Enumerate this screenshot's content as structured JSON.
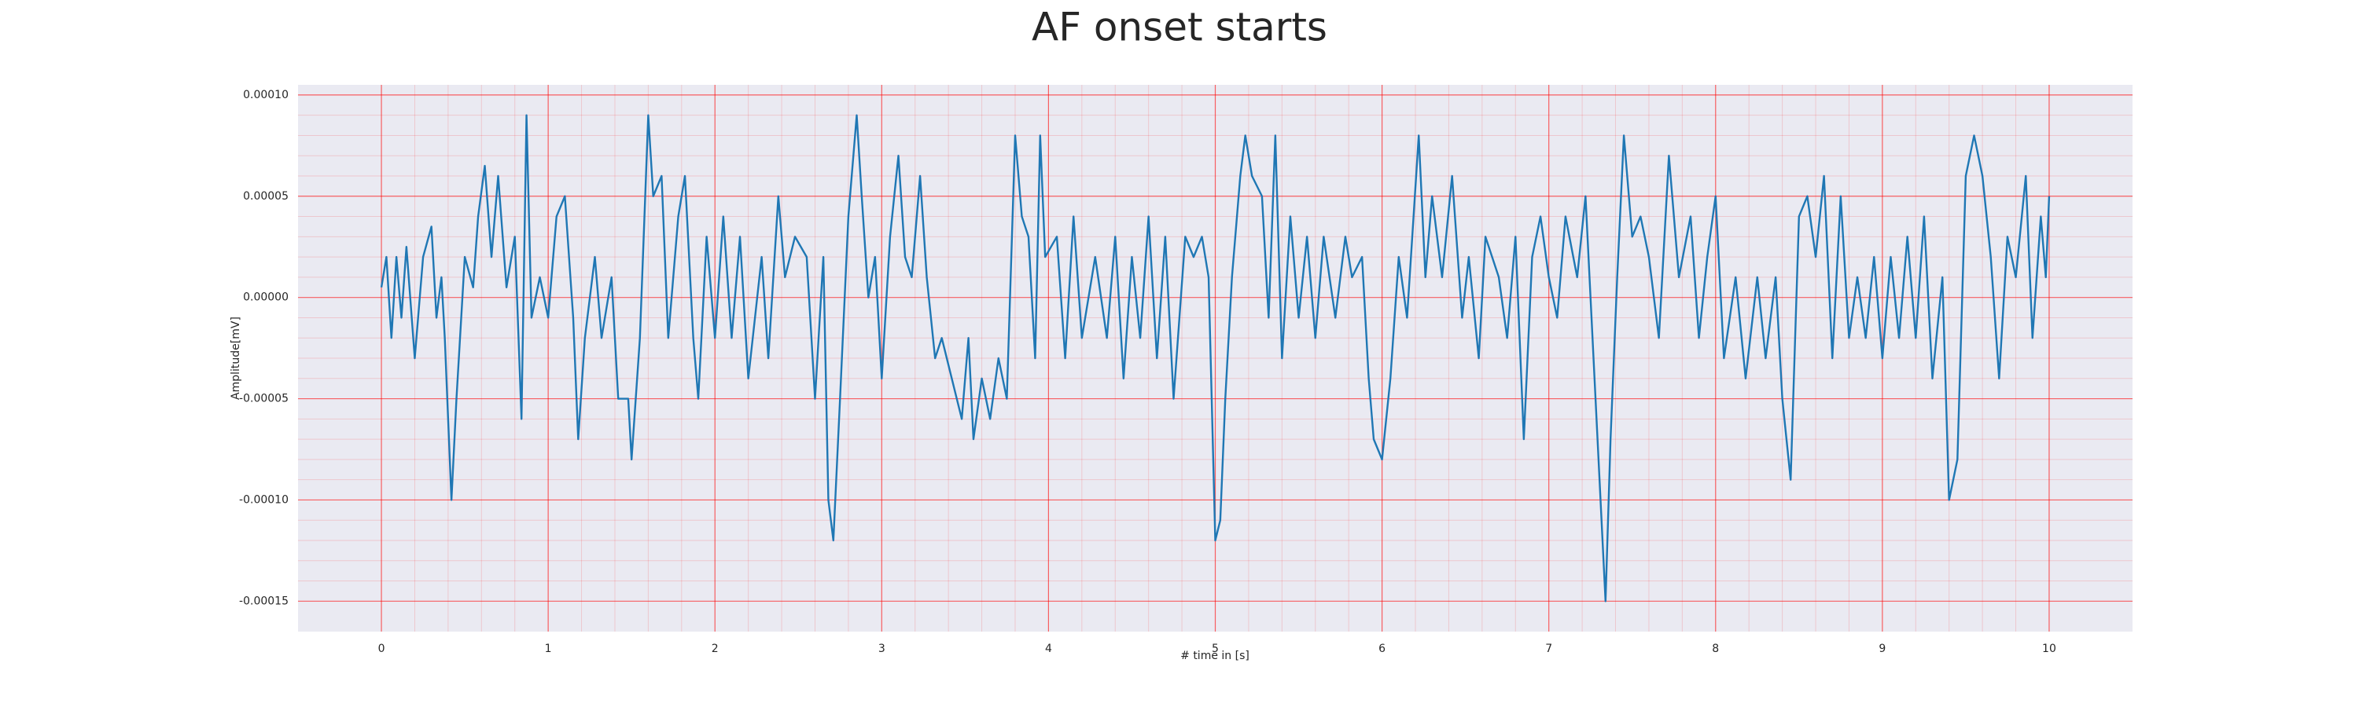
{
  "chart_data": {
    "type": "line",
    "title": "AF onset starts",
    "xlabel": "# time in [s]",
    "ylabel": "Amplitude[mV]",
    "color": "#1f77b4",
    "background": "#eaeaf2",
    "grid": true,
    "grid_color": "#ff0000",
    "minor_grid": true,
    "xlim": [
      -0.5,
      10.5
    ],
    "ylim": [
      -0.000165,
      0.000105
    ],
    "xticks": [
      0,
      1,
      2,
      3,
      4,
      5,
      6,
      7,
      8,
      9,
      10
    ],
    "yticks": [
      {
        "value": 0.0001,
        "label": "0.00010"
      },
      {
        "value": 5e-05,
        "label": "0.00005"
      },
      {
        "value": 0,
        "label": "0.00000"
      },
      {
        "value": -5e-05,
        "label": "-0.00005"
      },
      {
        "value": -0.0001,
        "label": "-0.00010"
      },
      {
        "value": -0.00015,
        "label": "-0.00015"
      }
    ],
    "x": [
      0,
      0.03,
      0.06,
      0.09,
      0.12,
      0.15,
      0.2,
      0.25,
      0.3,
      0.33,
      0.36,
      0.38,
      0.42,
      0.45,
      0.5,
      0.55,
      0.58,
      0.62,
      0.66,
      0.7,
      0.75,
      0.8,
      0.84,
      0.87,
      0.9,
      0.95,
      1.0,
      1.05,
      1.1,
      1.15,
      1.18,
      1.22,
      1.28,
      1.32,
      1.38,
      1.42,
      1.48,
      1.5,
      1.55,
      1.6,
      1.63,
      1.68,
      1.72,
      1.78,
      1.82,
      1.87,
      1.9,
      1.95,
      2.0,
      2.05,
      2.1,
      2.15,
      2.2,
      2.28,
      2.32,
      2.38,
      2.42,
      2.48,
      2.55,
      2.6,
      2.65,
      2.68,
      2.71,
      2.75,
      2.8,
      2.85,
      2.88,
      2.92,
      2.96,
      3.0,
      3.05,
      3.1,
      3.14,
      3.18,
      3.23,
      3.27,
      3.32,
      3.36,
      3.42,
      3.48,
      3.52,
      3.55,
      3.6,
      3.65,
      3.7,
      3.75,
      3.8,
      3.84,
      3.88,
      3.92,
      3.95,
      3.98,
      4.05,
      4.1,
      4.15,
      4.2,
      4.28,
      4.35,
      4.4,
      4.45,
      4.5,
      4.55,
      4.6,
      4.65,
      4.7,
      4.75,
      4.82,
      4.87,
      4.92,
      4.96,
      5.0,
      5.03,
      5.06,
      5.1,
      5.15,
      5.18,
      5.22,
      5.28,
      5.32,
      5.36,
      5.4,
      5.45,
      5.5,
      5.55,
      5.6,
      5.65,
      5.72,
      5.78,
      5.82,
      5.88,
      5.92,
      5.95,
      6.0,
      6.05,
      6.1,
      6.15,
      6.22,
      6.26,
      6.3,
      6.36,
      6.42,
      6.48,
      6.52,
      6.58,
      6.62,
      6.7,
      6.75,
      6.8,
      6.85,
      6.9,
      6.95,
      7.0,
      7.05,
      7.1,
      7.17,
      7.22,
      7.28,
      7.31,
      7.34,
      7.37,
      7.41,
      7.45,
      7.5,
      7.55,
      7.6,
      7.66,
      7.72,
      7.78,
      7.85,
      7.9,
      7.95,
      8.0,
      8.05,
      8.12,
      8.18,
      8.25,
      8.3,
      8.36,
      8.4,
      8.45,
      8.5,
      8.55,
      8.6,
      8.65,
      8.7,
      8.75,
      8.8,
      8.85,
      8.9,
      8.95,
      9.0,
      9.05,
      9.1,
      9.15,
      9.2,
      9.25,
      9.3,
      9.36,
      9.4,
      9.45,
      9.5,
      9.55,
      9.6,
      9.65,
      9.7,
      9.75,
      9.8,
      9.86,
      9.9,
      9.95,
      9.98,
      10.0
    ],
    "values": [
      5e-06,
      2e-05,
      -2e-05,
      2e-05,
      -1e-05,
      2.5e-05,
      -3e-05,
      2e-05,
      3.5e-05,
      -1e-05,
      1e-05,
      -2e-05,
      -0.0001,
      -5e-05,
      2e-05,
      5e-06,
      4e-05,
      6.5e-05,
      2e-05,
      6e-05,
      5e-06,
      3e-05,
      -6e-05,
      9e-05,
      -1e-05,
      1e-05,
      -1e-05,
      4e-05,
      5e-05,
      -1e-05,
      -7e-05,
      -2e-05,
      2e-05,
      -2e-05,
      1e-05,
      -5e-05,
      -5e-05,
      -8e-05,
      -2e-05,
      9e-05,
      5e-05,
      6e-05,
      -2e-05,
      4e-05,
      6e-05,
      -2e-05,
      -5e-05,
      3e-05,
      -2e-05,
      4e-05,
      -2e-05,
      3e-05,
      -4e-05,
      2e-05,
      -3e-05,
      5e-05,
      1e-05,
      3e-05,
      2e-05,
      -5e-05,
      2e-05,
      -0.0001,
      -0.00012,
      -5e-05,
      4e-05,
      9e-05,
      5e-05,
      0,
      2e-05,
      -4e-05,
      3e-05,
      7e-05,
      2e-05,
      1e-05,
      6e-05,
      1e-05,
      -3e-05,
      -2e-05,
      -4e-05,
      -6e-05,
      -2e-05,
      -7e-05,
      -4e-05,
      -6e-05,
      -3e-05,
      -5e-05,
      8e-05,
      4e-05,
      3e-05,
      -3e-05,
      8e-05,
      2e-05,
      3e-05,
      -3e-05,
      4e-05,
      -2e-05,
      2e-05,
      -2e-05,
      3e-05,
      -4e-05,
      2e-05,
      -2e-05,
      4e-05,
      -3e-05,
      3e-05,
      -5e-05,
      3e-05,
      2e-05,
      3e-05,
      1e-05,
      -0.00012,
      -0.00011,
      -5e-05,
      1e-05,
      6e-05,
      8e-05,
      6e-05,
      5e-05,
      -1e-05,
      8e-05,
      -3e-05,
      4e-05,
      -1e-05,
      3e-05,
      -2e-05,
      3e-05,
      -1e-05,
      3e-05,
      1e-05,
      2e-05,
      -4e-05,
      -7e-05,
      -8e-05,
      -4e-05,
      2e-05,
      -1e-05,
      8e-05,
      1e-05,
      5e-05,
      1e-05,
      6e-05,
      -1e-05,
      2e-05,
      -3e-05,
      3e-05,
      1e-05,
      -2e-05,
      3e-05,
      -7e-05,
      2e-05,
      4e-05,
      1e-05,
      -1e-05,
      4e-05,
      1e-05,
      5e-05,
      -5e-05,
      -0.0001,
      -0.00015,
      -7e-05,
      1e-05,
      8e-05,
      3e-05,
      4e-05,
      2e-05,
      -2e-05,
      7e-05,
      1e-05,
      4e-05,
      -2e-05,
      2e-05,
      5e-05,
      -3e-05,
      1e-05,
      -4e-05,
      1e-05,
      -3e-05,
      1e-05,
      -5e-05,
      -9e-05,
      4e-05,
      5e-05,
      2e-05,
      6e-05,
      -3e-05,
      5e-05,
      -2e-05,
      1e-05,
      -2e-05,
      2e-05,
      -3e-05,
      2e-05,
      -2e-05,
      3e-05,
      -2e-05,
      4e-05,
      -4e-05,
      1e-05,
      -0.0001,
      -8e-05,
      6e-05,
      8e-05,
      6e-05,
      2e-05,
      -4e-05,
      3e-05,
      1e-05,
      6e-05,
      -2e-05,
      4e-05,
      1e-05,
      5e-05
    ]
  }
}
